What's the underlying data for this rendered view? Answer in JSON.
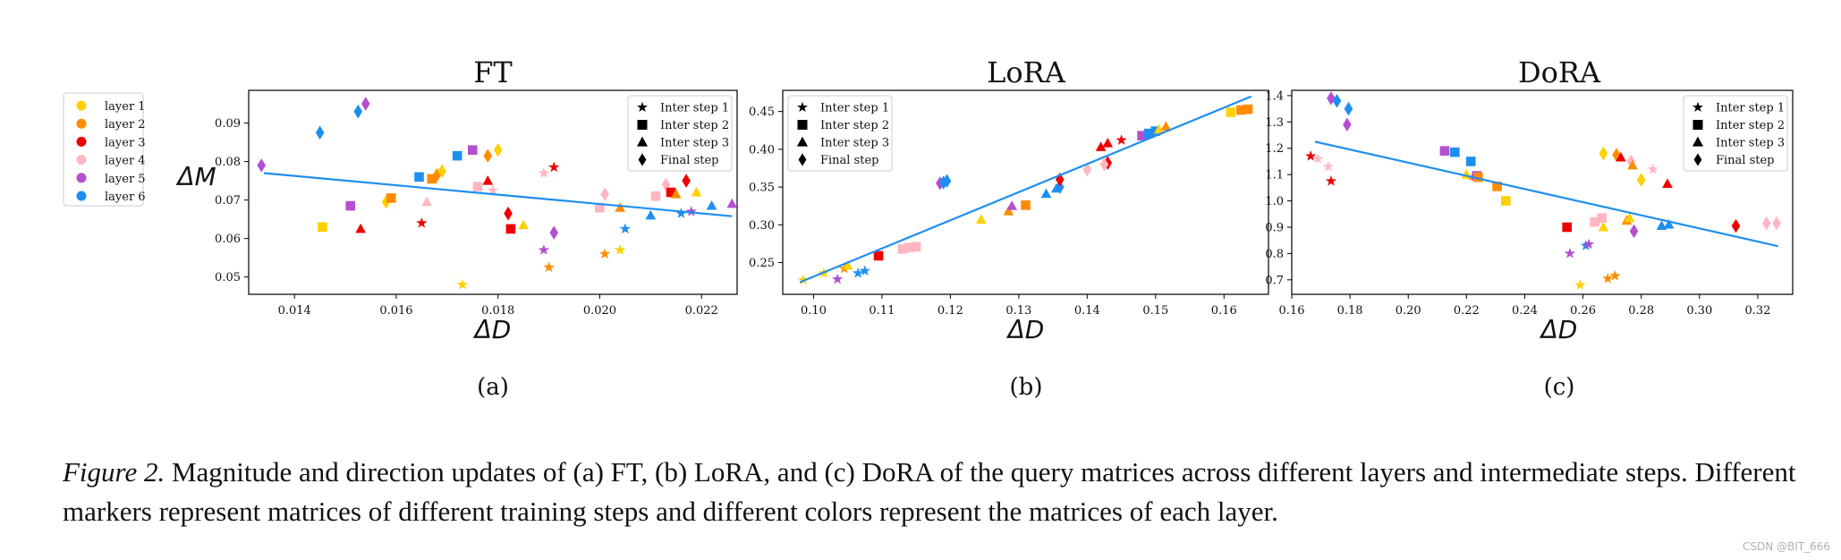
{
  "legend_layers": [
    {
      "label": "layer 1",
      "color": "#ffd000"
    },
    {
      "label": "layer 2",
      "color": "#ff8c00"
    },
    {
      "label": "layer 3",
      "color": "#ee0000"
    },
    {
      "label": "layer 4",
      "color": "#ffb6c1"
    },
    {
      "label": "layer 5",
      "color": "#b44fd0"
    },
    {
      "label": "layer 6",
      "color": "#1e8ff0"
    }
  ],
  "legend_steps": [
    {
      "label": "Inter step 1",
      "marker": "star"
    },
    {
      "label": "Inter step 2",
      "marker": "square"
    },
    {
      "label": "Inter step 3",
      "marker": "triangle"
    },
    {
      "label": "Final step",
      "marker": "diamond"
    }
  ],
  "fit_color": "#1e8ff0",
  "caption": {
    "figure_label": "Figure 2.",
    "text": " Magnitude and direction updates of (a) FT, (b) LoRA, and (c) DoRA of the query matrices across different layers and intermediate steps. Different markers represent matrices of different training steps and different colors represent the matrices of each layer."
  },
  "watermark": "CSDN @BIT_666",
  "chart_data": [
    {
      "type": "scatter",
      "title": "FT",
      "sublabel": "(a)",
      "xlabel": "ΔD",
      "ylabel": "ΔM",
      "xlim": [
        0.0131,
        0.0227
      ],
      "ylim": [
        0.0455,
        0.0985
      ],
      "xticks": [
        "0.014",
        "0.016",
        "0.018",
        "0.020",
        "0.022"
      ],
      "yticks": [
        "0.05",
        "0.06",
        "0.07",
        "0.08",
        "0.09"
      ],
      "fit_line": [
        [
          0.0134,
          0.077
        ],
        [
          0.0226,
          0.0658
        ]
      ],
      "points": [
        {
          "x": 0.01335,
          "y": 0.079,
          "layer": 5,
          "step": 4
        },
        {
          "x": 0.0145,
          "y": 0.0875,
          "layer": 6,
          "step": 4
        },
        {
          "x": 0.01455,
          "y": 0.063,
          "layer": 1,
          "step": 2
        },
        {
          "x": 0.0151,
          "y": 0.0685,
          "layer": 5,
          "step": 2
        },
        {
          "x": 0.01525,
          "y": 0.093,
          "layer": 6,
          "step": 4
        },
        {
          "x": 0.0153,
          "y": 0.0625,
          "layer": 3,
          "step": 3
        },
        {
          "x": 0.0154,
          "y": 0.095,
          "layer": 5,
          "step": 4
        },
        {
          "x": 0.0158,
          "y": 0.0695,
          "layer": 1,
          "step": 4
        },
        {
          "x": 0.0159,
          "y": 0.0705,
          "layer": 2,
          "step": 2
        },
        {
          "x": 0.01645,
          "y": 0.076,
          "layer": 6,
          "step": 2
        },
        {
          "x": 0.0165,
          "y": 0.064,
          "layer": 3,
          "step": 1
        },
        {
          "x": 0.0166,
          "y": 0.0695,
          "layer": 4,
          "step": 3
        },
        {
          "x": 0.0167,
          "y": 0.0755,
          "layer": 2,
          "step": 2
        },
        {
          "x": 0.0168,
          "y": 0.0765,
          "layer": 2,
          "step": 4
        },
        {
          "x": 0.0169,
          "y": 0.0775,
          "layer": 1,
          "step": 4
        },
        {
          "x": 0.0172,
          "y": 0.0815,
          "layer": 6,
          "step": 2
        },
        {
          "x": 0.0173,
          "y": 0.048,
          "layer": 1,
          "step": 1
        },
        {
          "x": 0.0175,
          "y": 0.083,
          "layer": 5,
          "step": 2
        },
        {
          "x": 0.0176,
          "y": 0.0735,
          "layer": 4,
          "step": 2
        },
        {
          "x": 0.0178,
          "y": 0.075,
          "layer": 3,
          "step": 3
        },
        {
          "x": 0.0178,
          "y": 0.0815,
          "layer": 2,
          "step": 4
        },
        {
          "x": 0.0179,
          "y": 0.0725,
          "layer": 4,
          "step": 1
        },
        {
          "x": 0.018,
          "y": 0.083,
          "layer": 1,
          "step": 4
        },
        {
          "x": 0.0182,
          "y": 0.0665,
          "layer": 3,
          "step": 4
        },
        {
          "x": 0.01825,
          "y": 0.0625,
          "layer": 3,
          "step": 2
        },
        {
          "x": 0.0185,
          "y": 0.0635,
          "layer": 1,
          "step": 3
        },
        {
          "x": 0.0189,
          "y": 0.077,
          "layer": 4,
          "step": 1
        },
        {
          "x": 0.0189,
          "y": 0.057,
          "layer": 5,
          "step": 1
        },
        {
          "x": 0.019,
          "y": 0.0525,
          "layer": 2,
          "step": 1
        },
        {
          "x": 0.0191,
          "y": 0.0615,
          "layer": 5,
          "step": 4
        },
        {
          "x": 0.0191,
          "y": 0.0785,
          "layer": 3,
          "step": 1
        },
        {
          "x": 0.02,
          "y": 0.068,
          "layer": 4,
          "step": 2
        },
        {
          "x": 0.0201,
          "y": 0.056,
          "layer": 2,
          "step": 1
        },
        {
          "x": 0.0201,
          "y": 0.0715,
          "layer": 4,
          "step": 4
        },
        {
          "x": 0.0204,
          "y": 0.057,
          "layer": 1,
          "step": 1
        },
        {
          "x": 0.0204,
          "y": 0.068,
          "layer": 2,
          "step": 3
        },
        {
          "x": 0.0205,
          "y": 0.0625,
          "layer": 6,
          "step": 1
        },
        {
          "x": 0.021,
          "y": 0.066,
          "layer": 6,
          "step": 3
        },
        {
          "x": 0.0211,
          "y": 0.071,
          "layer": 4,
          "step": 2
        },
        {
          "x": 0.0213,
          "y": 0.074,
          "layer": 4,
          "step": 4
        },
        {
          "x": 0.0214,
          "y": 0.072,
          "layer": 3,
          "step": 2
        },
        {
          "x": 0.0215,
          "y": 0.0715,
          "layer": 2,
          "step": 3
        },
        {
          "x": 0.0216,
          "y": 0.0665,
          "layer": 6,
          "step": 1
        },
        {
          "x": 0.0217,
          "y": 0.075,
          "layer": 3,
          "step": 4
        },
        {
          "x": 0.0218,
          "y": 0.067,
          "layer": 5,
          "step": 1
        },
        {
          "x": 0.0219,
          "y": 0.072,
          "layer": 1,
          "step": 3
        },
        {
          "x": 0.0222,
          "y": 0.0685,
          "layer": 6,
          "step": 3
        },
        {
          "x": 0.0226,
          "y": 0.069,
          "layer": 5,
          "step": 3
        }
      ]
    },
    {
      "type": "scatter",
      "title": "LoRA",
      "sublabel": "(b)",
      "xlabel": "ΔD",
      "ylabel": "",
      "xlim": [
        0.0955,
        0.1665
      ],
      "ylim": [
        0.208,
        0.478
      ],
      "xticks": [
        "0.10",
        "0.11",
        "0.12",
        "0.13",
        "0.14",
        "0.15",
        "0.16"
      ],
      "yticks": [
        "0.25",
        "0.30",
        "0.35",
        "0.40",
        "0.45"
      ],
      "fit_line": [
        [
          0.098,
          0.224
        ],
        [
          0.164,
          0.47
        ]
      ],
      "points": [
        {
          "x": 0.0985,
          "y": 0.227,
          "layer": 1,
          "step": 1
        },
        {
          "x": 0.1015,
          "y": 0.236,
          "layer": 1,
          "step": 1
        },
        {
          "x": 0.1035,
          "y": 0.228,
          "layer": 5,
          "step": 1
        },
        {
          "x": 0.1045,
          "y": 0.242,
          "layer": 2,
          "step": 1
        },
        {
          "x": 0.105,
          "y": 0.246,
          "layer": 1,
          "step": 3
        },
        {
          "x": 0.1065,
          "y": 0.236,
          "layer": 6,
          "step": 1
        },
        {
          "x": 0.1075,
          "y": 0.239,
          "layer": 6,
          "step": 1
        },
        {
          "x": 0.1095,
          "y": 0.259,
          "layer": 3,
          "step": 2
        },
        {
          "x": 0.113,
          "y": 0.268,
          "layer": 4,
          "step": 2
        },
        {
          "x": 0.114,
          "y": 0.27,
          "layer": 4,
          "step": 2
        },
        {
          "x": 0.115,
          "y": 0.271,
          "layer": 4,
          "step": 2
        },
        {
          "x": 0.1185,
          "y": 0.355,
          "layer": 5,
          "step": 4
        },
        {
          "x": 0.119,
          "y": 0.356,
          "layer": 6,
          "step": 4
        },
        {
          "x": 0.1195,
          "y": 0.358,
          "layer": 6,
          "step": 4
        },
        {
          "x": 0.1245,
          "y": 0.307,
          "layer": 1,
          "step": 3
        },
        {
          "x": 0.1285,
          "y": 0.318,
          "layer": 2,
          "step": 3
        },
        {
          "x": 0.129,
          "y": 0.325,
          "layer": 5,
          "step": 3
        },
        {
          "x": 0.131,
          "y": 0.326,
          "layer": 2,
          "step": 2
        },
        {
          "x": 0.134,
          "y": 0.341,
          "layer": 6,
          "step": 3
        },
        {
          "x": 0.1355,
          "y": 0.348,
          "layer": 6,
          "step": 3
        },
        {
          "x": 0.136,
          "y": 0.35,
          "layer": 6,
          "step": 4
        },
        {
          "x": 0.136,
          "y": 0.36,
          "layer": 3,
          "step": 4
        },
        {
          "x": 0.14,
          "y": 0.373,
          "layer": 4,
          "step": 4
        },
        {
          "x": 0.142,
          "y": 0.403,
          "layer": 3,
          "step": 3
        },
        {
          "x": 0.143,
          "y": 0.408,
          "layer": 3,
          "step": 3
        },
        {
          "x": 0.143,
          "y": 0.382,
          "layer": 3,
          "step": 4
        },
        {
          "x": 0.1425,
          "y": 0.38,
          "layer": 4,
          "step": 4
        },
        {
          "x": 0.145,
          "y": 0.412,
          "layer": 3,
          "step": 1
        },
        {
          "x": 0.148,
          "y": 0.418,
          "layer": 5,
          "step": 2
        },
        {
          "x": 0.149,
          "y": 0.421,
          "layer": 6,
          "step": 2
        },
        {
          "x": 0.15,
          "y": 0.424,
          "layer": 6,
          "step": 2
        },
        {
          "x": 0.1505,
          "y": 0.426,
          "layer": 1,
          "step": 3
        },
        {
          "x": 0.1515,
          "y": 0.43,
          "layer": 2,
          "step": 3
        },
        {
          "x": 0.161,
          "y": 0.449,
          "layer": 1,
          "step": 2
        },
        {
          "x": 0.1625,
          "y": 0.452,
          "layer": 2,
          "step": 2
        },
        {
          "x": 0.1635,
          "y": 0.453,
          "layer": 2,
          "step": 2
        }
      ]
    },
    {
      "type": "scatter",
      "title": "DoRA",
      "sublabel": "(c)",
      "xlabel": "ΔD",
      "ylabel": "",
      "xlim": [
        0.16,
        0.332
      ],
      "ylim": [
        0.645,
        1.42
      ],
      "xticks": [
        "0.16",
        "0.18",
        "0.20",
        "0.22",
        "0.24",
        "0.26",
        "0.28",
        "0.30",
        "0.32"
      ],
      "yticks": [
        "0.7",
        "0.8",
        "0.9",
        "1.0",
        "1.1",
        "1.2",
        "1.3",
        "1.4"
      ],
      "fit_line": [
        [
          0.168,
          1.225
        ],
        [
          0.327,
          0.828
        ]
      ],
      "points": [
        {
          "x": 0.1665,
          "y": 1.17,
          "layer": 3,
          "step": 1
        },
        {
          "x": 0.169,
          "y": 1.16,
          "layer": 4,
          "step": 1
        },
        {
          "x": 0.1725,
          "y": 1.13,
          "layer": 4,
          "step": 1
        },
        {
          "x": 0.1735,
          "y": 1.075,
          "layer": 3,
          "step": 1
        },
        {
          "x": 0.1735,
          "y": 1.39,
          "layer": 5,
          "step": 4
        },
        {
          "x": 0.1755,
          "y": 1.38,
          "layer": 6,
          "step": 4
        },
        {
          "x": 0.179,
          "y": 1.29,
          "layer": 5,
          "step": 4
        },
        {
          "x": 0.1795,
          "y": 1.35,
          "layer": 6,
          "step": 4
        },
        {
          "x": 0.2125,
          "y": 1.19,
          "layer": 5,
          "step": 2
        },
        {
          "x": 0.216,
          "y": 1.185,
          "layer": 6,
          "step": 2
        },
        {
          "x": 0.22,
          "y": 1.1,
          "layer": 1,
          "step": 3
        },
        {
          "x": 0.2215,
          "y": 1.15,
          "layer": 6,
          "step": 2
        },
        {
          "x": 0.2225,
          "y": 1.095,
          "layer": 2,
          "step": 3
        },
        {
          "x": 0.2235,
          "y": 1.095,
          "layer": 5,
          "step": 2
        },
        {
          "x": 0.224,
          "y": 1.09,
          "layer": 2,
          "step": 2
        },
        {
          "x": 0.2305,
          "y": 1.055,
          "layer": 2,
          "step": 2
        },
        {
          "x": 0.2335,
          "y": 1.0,
          "layer": 1,
          "step": 2
        },
        {
          "x": 0.2545,
          "y": 0.9,
          "layer": 3,
          "step": 2
        },
        {
          "x": 0.2555,
          "y": 0.8,
          "layer": 5,
          "step": 1
        },
        {
          "x": 0.259,
          "y": 0.68,
          "layer": 1,
          "step": 1
        },
        {
          "x": 0.261,
          "y": 0.83,
          "layer": 6,
          "step": 1
        },
        {
          "x": 0.262,
          "y": 0.835,
          "layer": 5,
          "step": 1
        },
        {
          "x": 0.264,
          "y": 0.92,
          "layer": 4,
          "step": 2
        },
        {
          "x": 0.2665,
          "y": 0.935,
          "layer": 4,
          "step": 2
        },
        {
          "x": 0.267,
          "y": 1.18,
          "layer": 1,
          "step": 4
        },
        {
          "x": 0.267,
          "y": 0.9,
          "layer": 1,
          "step": 3
        },
        {
          "x": 0.2685,
          "y": 0.705,
          "layer": 2,
          "step": 1
        },
        {
          "x": 0.271,
          "y": 0.715,
          "layer": 2,
          "step": 1
        },
        {
          "x": 0.2715,
          "y": 1.175,
          "layer": 2,
          "step": 4
        },
        {
          "x": 0.273,
          "y": 1.165,
          "layer": 3,
          "step": 3
        },
        {
          "x": 0.275,
          "y": 0.925,
          "layer": 2,
          "step": 3
        },
        {
          "x": 0.276,
          "y": 0.935,
          "layer": 1,
          "step": 3
        },
        {
          "x": 0.2765,
          "y": 1.15,
          "layer": 4,
          "step": 4
        },
        {
          "x": 0.277,
          "y": 1.135,
          "layer": 2,
          "step": 3
        },
        {
          "x": 0.2775,
          "y": 0.885,
          "layer": 5,
          "step": 4
        },
        {
          "x": 0.28,
          "y": 1.08,
          "layer": 1,
          "step": 4
        },
        {
          "x": 0.284,
          "y": 1.12,
          "layer": 4,
          "step": 1
        },
        {
          "x": 0.287,
          "y": 0.905,
          "layer": 6,
          "step": 3
        },
        {
          "x": 0.289,
          "y": 1.065,
          "layer": 3,
          "step": 3
        },
        {
          "x": 0.2895,
          "y": 0.91,
          "layer": 6,
          "step": 3
        },
        {
          "x": 0.3125,
          "y": 0.905,
          "layer": 3,
          "step": 4
        },
        {
          "x": 0.323,
          "y": 0.915,
          "layer": 4,
          "step": 4
        },
        {
          "x": 0.3265,
          "y": 0.915,
          "layer": 4,
          "step": 4
        }
      ]
    }
  ]
}
